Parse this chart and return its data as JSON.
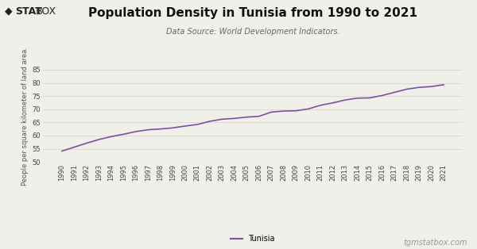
{
  "title": "Population Density in Tunisia from 1990 to 2021",
  "subtitle": "Data Source: World Development Indicators.",
  "ylabel": "People per square kilometer of land area.",
  "xlabel": "",
  "legend_label": "Tunisia",
  "watermark": "tgmstatbox.com",
  "line_color": "#7b4fa6",
  "bg_color": "#f0f0eb",
  "years": [
    1990,
    1991,
    1992,
    1993,
    1994,
    1995,
    1996,
    1997,
    1998,
    1999,
    2000,
    2001,
    2002,
    2003,
    2004,
    2005,
    2006,
    2007,
    2008,
    2009,
    2010,
    2011,
    2012,
    2013,
    2014,
    2015,
    2016,
    2017,
    2018,
    2019,
    2020,
    2021
  ],
  "values": [
    54.1,
    55.6,
    57.1,
    58.5,
    59.6,
    60.5,
    61.5,
    62.2,
    62.5,
    62.9,
    63.6,
    64.2,
    65.4,
    66.2,
    66.5,
    67.0,
    67.3,
    68.9,
    69.3,
    69.4,
    70.1,
    71.5,
    72.4,
    73.5,
    74.2,
    74.3,
    75.2,
    76.4,
    77.6,
    78.3,
    78.6,
    79.3
  ],
  "ylim": [
    50,
    85
  ],
  "yticks": [
    50,
    55,
    60,
    65,
    70,
    75,
    80,
    85
  ],
  "grid_color": "#d8d8d0",
  "title_fontsize": 11,
  "subtitle_fontsize": 7,
  "tick_fontsize": 6,
  "ylabel_fontsize": 6,
  "legend_fontsize": 7,
  "watermark_fontsize": 7,
  "logo_fontsize": 9,
  "line_width": 1.2
}
